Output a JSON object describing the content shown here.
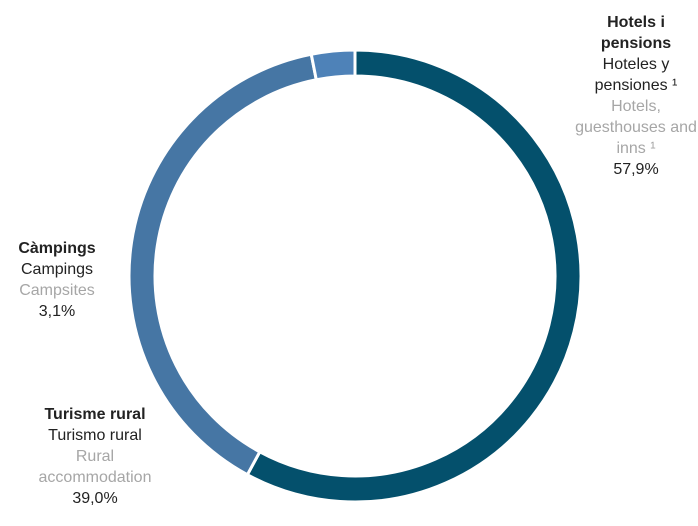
{
  "chart_data": {
    "type": "pie",
    "donut": true,
    "legend": "none",
    "slices": [
      {
        "label_ca": "Hotels i pensions",
        "label_es": "Hoteles y pensiones ¹",
        "label_en": "Hotels, guesthouses and inns ¹",
        "value": 57.9,
        "value_label": "57,9%",
        "color": "#04506c"
      },
      {
        "label_ca": "Turisme rural",
        "label_es": "Turismo rural",
        "label_en": "Rural accommodation",
        "value": 39.0,
        "value_label": "39,0%",
        "color": "#4676a4"
      },
      {
        "label_ca": "Càmpings",
        "label_es": "Campings",
        "label_en": "Campsites",
        "value": 3.1,
        "value_label": "3,1%",
        "color": "#4e82b8"
      }
    ]
  }
}
